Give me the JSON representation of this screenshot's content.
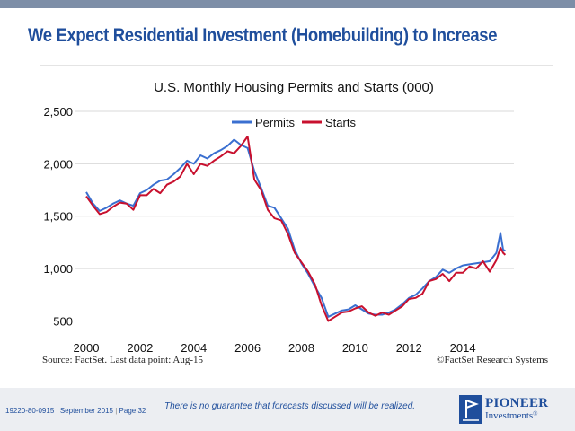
{
  "slide": {
    "title": "We Expect Residential Investment (Homebuilding) to Increase",
    "source": "Source: FactSet. Last data point: Aug-15",
    "copyright": "©FactSet Research Systems",
    "footer_code": "19220-80-0915",
    "footer_date": "September 2015",
    "footer_page": "Page 32",
    "disclaimer": "There is no guarantee that forecasts discussed will be realized.",
    "logo_name": "PIONEER",
    "logo_sub": "Investments",
    "logo_reg": "®"
  },
  "colors": {
    "title": "#1f4e9c",
    "permits": "#3a6fd0",
    "starts": "#c8102e",
    "footer_band": "#eceef2",
    "top_bar": "#7d8ea7"
  },
  "chart_data": {
    "type": "line",
    "title": "U.S. Monthly Housing Permits and Starts (000)",
    "xlabel": "",
    "ylabel": "",
    "xlim": [
      1999.6,
      2015.9
    ],
    "ylim": [
      350,
      2560
    ],
    "x_ticks": [
      2000,
      2002,
      2004,
      2006,
      2008,
      2010,
      2012,
      2014
    ],
    "x_tick_labels": [
      "2000",
      "2002",
      "2004",
      "2006",
      "2008",
      "2010",
      "2012",
      "2014"
    ],
    "y_ticks": [
      500,
      1000,
      1500,
      2000,
      2500
    ],
    "y_tick_labels": [
      "500",
      "1,000",
      "1,500",
      "2,000",
      "2,500"
    ],
    "grid": "horizontal",
    "legend": "top-center",
    "series": [
      {
        "name": "Permits",
        "color": "#3a6fd0",
        "points": [
          [
            2000.0,
            1730
          ],
          [
            2000.25,
            1620
          ],
          [
            2000.5,
            1550
          ],
          [
            2000.75,
            1580
          ],
          [
            2001.0,
            1620
          ],
          [
            2001.25,
            1650
          ],
          [
            2001.5,
            1620
          ],
          [
            2001.75,
            1600
          ],
          [
            2002.0,
            1720
          ],
          [
            2002.25,
            1750
          ],
          [
            2002.5,
            1800
          ],
          [
            2002.75,
            1840
          ],
          [
            2003.0,
            1850
          ],
          [
            2003.25,
            1900
          ],
          [
            2003.5,
            1960
          ],
          [
            2003.75,
            2030
          ],
          [
            2004.0,
            2000
          ],
          [
            2004.25,
            2080
          ],
          [
            2004.5,
            2050
          ],
          [
            2004.75,
            2100
          ],
          [
            2005.0,
            2130
          ],
          [
            2005.25,
            2170
          ],
          [
            2005.5,
            2230
          ],
          [
            2005.75,
            2180
          ],
          [
            2006.0,
            2150
          ],
          [
            2006.25,
            1930
          ],
          [
            2006.5,
            1770
          ],
          [
            2006.75,
            1600
          ],
          [
            2007.0,
            1580
          ],
          [
            2007.25,
            1480
          ],
          [
            2007.5,
            1380
          ],
          [
            2007.75,
            1180
          ],
          [
            2008.0,
            1050
          ],
          [
            2008.25,
            950
          ],
          [
            2008.5,
            830
          ],
          [
            2008.75,
            720
          ],
          [
            2009.0,
            540
          ],
          [
            2009.25,
            570
          ],
          [
            2009.5,
            600
          ],
          [
            2009.75,
            610
          ],
          [
            2010.0,
            650
          ],
          [
            2010.25,
            610
          ],
          [
            2010.5,
            570
          ],
          [
            2010.75,
            560
          ],
          [
            2011.0,
            560
          ],
          [
            2011.25,
            580
          ],
          [
            2011.5,
            610
          ],
          [
            2011.75,
            660
          ],
          [
            2012.0,
            720
          ],
          [
            2012.25,
            750
          ],
          [
            2012.5,
            810
          ],
          [
            2012.75,
            880
          ],
          [
            2013.0,
            920
          ],
          [
            2013.25,
            990
          ],
          [
            2013.5,
            960
          ],
          [
            2013.75,
            1000
          ],
          [
            2014.0,
            1030
          ],
          [
            2014.25,
            1040
          ],
          [
            2014.5,
            1050
          ],
          [
            2014.75,
            1060
          ],
          [
            2015.0,
            1070
          ],
          [
            2015.25,
            1150
          ],
          [
            2015.4,
            1340
          ],
          [
            2015.5,
            1180
          ],
          [
            2015.58,
            1170
          ]
        ]
      },
      {
        "name": "Starts",
        "color": "#c8102e",
        "points": [
          [
            2000.0,
            1690
          ],
          [
            2000.25,
            1600
          ],
          [
            2000.5,
            1520
          ],
          [
            2000.75,
            1540
          ],
          [
            2001.0,
            1590
          ],
          [
            2001.25,
            1630
          ],
          [
            2001.5,
            1620
          ],
          [
            2001.75,
            1560
          ],
          [
            2002.0,
            1700
          ],
          [
            2002.25,
            1700
          ],
          [
            2002.5,
            1760
          ],
          [
            2002.75,
            1720
          ],
          [
            2003.0,
            1800
          ],
          [
            2003.25,
            1830
          ],
          [
            2003.5,
            1880
          ],
          [
            2003.75,
            2000
          ],
          [
            2004.0,
            1900
          ],
          [
            2004.25,
            2000
          ],
          [
            2004.5,
            1980
          ],
          [
            2004.75,
            2030
          ],
          [
            2005.0,
            2070
          ],
          [
            2005.25,
            2120
          ],
          [
            2005.5,
            2100
          ],
          [
            2005.75,
            2170
          ],
          [
            2006.0,
            2260
          ],
          [
            2006.25,
            1850
          ],
          [
            2006.5,
            1750
          ],
          [
            2006.75,
            1560
          ],
          [
            2007.0,
            1480
          ],
          [
            2007.25,
            1460
          ],
          [
            2007.5,
            1330
          ],
          [
            2007.75,
            1150
          ],
          [
            2008.0,
            1060
          ],
          [
            2008.25,
            970
          ],
          [
            2008.5,
            850
          ],
          [
            2008.75,
            650
          ],
          [
            2009.0,
            500
          ],
          [
            2009.25,
            540
          ],
          [
            2009.5,
            580
          ],
          [
            2009.75,
            590
          ],
          [
            2010.0,
            620
          ],
          [
            2010.25,
            640
          ],
          [
            2010.5,
            580
          ],
          [
            2010.75,
            550
          ],
          [
            2011.0,
            580
          ],
          [
            2011.25,
            560
          ],
          [
            2011.5,
            600
          ],
          [
            2011.75,
            640
          ],
          [
            2012.0,
            710
          ],
          [
            2012.25,
            720
          ],
          [
            2012.5,
            760
          ],
          [
            2012.75,
            880
          ],
          [
            2013.0,
            900
          ],
          [
            2013.25,
            950
          ],
          [
            2013.5,
            880
          ],
          [
            2013.75,
            960
          ],
          [
            2014.0,
            960
          ],
          [
            2014.25,
            1020
          ],
          [
            2014.5,
            1000
          ],
          [
            2014.75,
            1070
          ],
          [
            2015.0,
            970
          ],
          [
            2015.25,
            1080
          ],
          [
            2015.4,
            1200
          ],
          [
            2015.5,
            1150
          ],
          [
            2015.58,
            1130
          ]
        ]
      }
    ]
  }
}
